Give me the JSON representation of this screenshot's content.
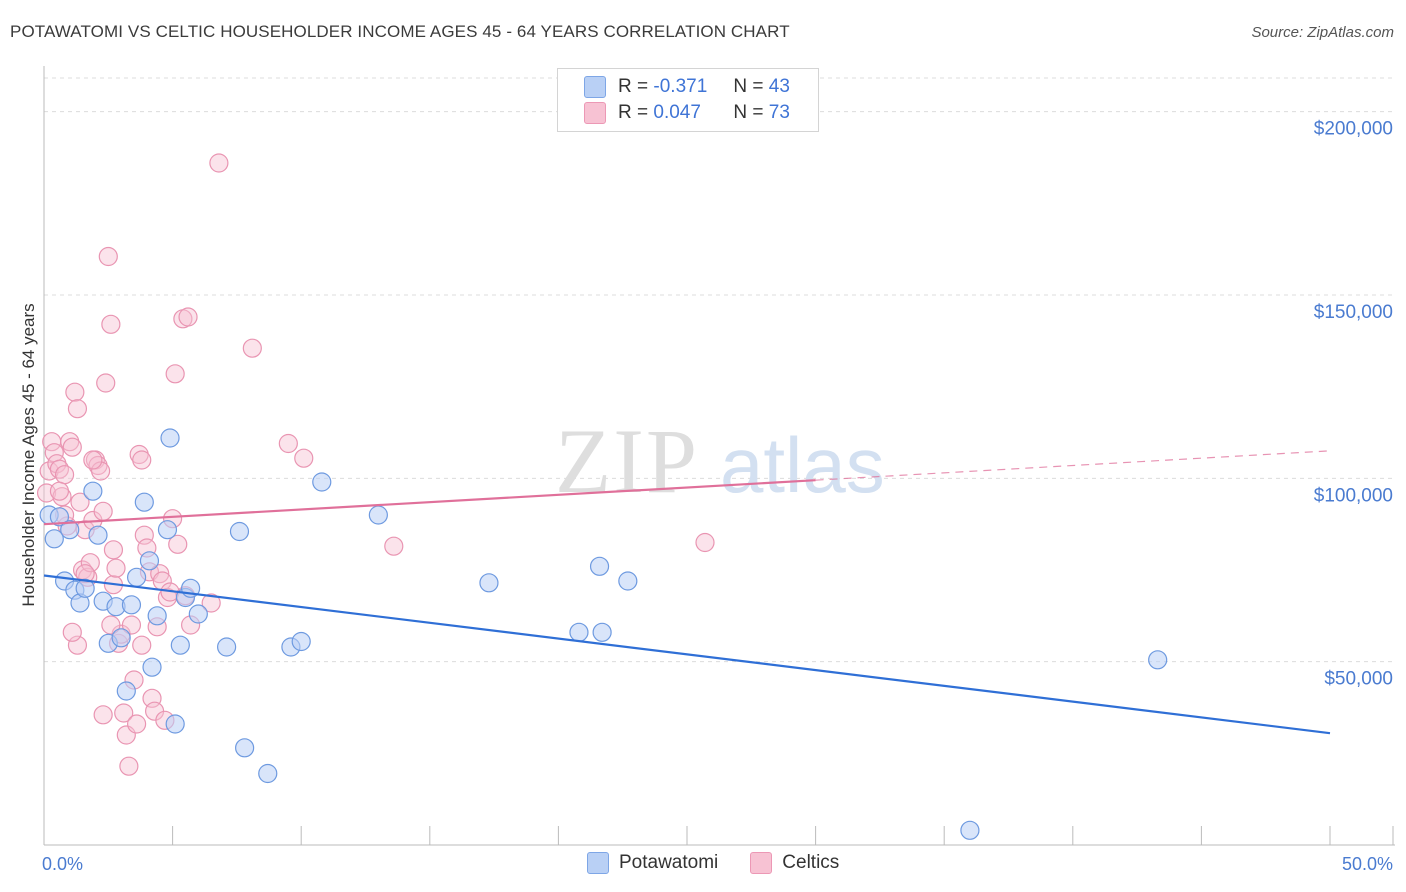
{
  "title": "POTAWATOMI VS CELTIC HOUSEHOLDER INCOME AGES 45 - 64 YEARS CORRELATION CHART",
  "source": "Source: ZipAtlas.com",
  "watermark": {
    "zip": "ZIP",
    "atlas": "atlas"
  },
  "legend_box": [
    {
      "r_label": "R =",
      "r_value": "-0.371",
      "n_label": "N =",
      "n_value": "43"
    },
    {
      "r_label": "R =",
      "r_value": "0.047",
      "n_label": "N =",
      "n_value": "73"
    }
  ],
  "bottom_legend": [
    "Potawatomi",
    "Celtics"
  ],
  "colors": {
    "blue": "#2f6fd6",
    "blue_fill": "#b9d0f5",
    "pink": "#e0709a",
    "pink_fill": "#f7c2d3",
    "axis_label": "#4a7bd0"
  },
  "chart_data": {
    "type": "scatter",
    "title": "POTAWATOMI VS CELTIC HOUSEHOLDER INCOME AGES 45 - 64 YEARS CORRELATION CHART",
    "xlabel": "",
    "ylabel": "Householder Income Ages 45 - 64 years",
    "xlim": [
      0,
      50
    ],
    "ylim": [
      0,
      210000
    ],
    "x_tick_labels": [
      "0.0%",
      "50.0%"
    ],
    "y_ticks": [
      50000,
      100000,
      150000,
      200000
    ],
    "y_tick_labels": [
      "$50,000",
      "$100,000",
      "$150,000",
      "$200,000"
    ],
    "grid": true,
    "series": [
      {
        "name": "Potawatomi",
        "r": -0.371,
        "n": 43,
        "trend": {
          "x": [
            0,
            50
          ],
          "y": [
            73500,
            30500
          ],
          "dashed_from": null
        },
        "points": [
          [
            0.2,
            90000
          ],
          [
            0.4,
            83500
          ],
          [
            0.6,
            89500
          ],
          [
            0.8,
            72000
          ],
          [
            1.0,
            86000
          ],
          [
            1.2,
            69500
          ],
          [
            1.4,
            66000
          ],
          [
            1.6,
            70000
          ],
          [
            1.9,
            96500
          ],
          [
            2.1,
            84500
          ],
          [
            2.3,
            66500
          ],
          [
            2.5,
            55000
          ],
          [
            2.8,
            65000
          ],
          [
            3.0,
            56500
          ],
          [
            3.2,
            42000
          ],
          [
            3.4,
            65500
          ],
          [
            3.6,
            73000
          ],
          [
            3.9,
            93500
          ],
          [
            4.1,
            77500
          ],
          [
            4.2,
            48500
          ],
          [
            4.4,
            62500
          ],
          [
            4.8,
            86000
          ],
          [
            4.9,
            111000
          ],
          [
            5.1,
            33000
          ],
          [
            5.3,
            54500
          ],
          [
            5.5,
            67500
          ],
          [
            5.7,
            70000
          ],
          [
            6.0,
            63000
          ],
          [
            7.1,
            54000
          ],
          [
            7.6,
            85500
          ],
          [
            7.8,
            26500
          ],
          [
            8.7,
            19500
          ],
          [
            9.6,
            54000
          ],
          [
            10.0,
            55500
          ],
          [
            10.8,
            99000
          ],
          [
            13.0,
            90000
          ],
          [
            17.3,
            71500
          ],
          [
            20.8,
            58000
          ],
          [
            21.6,
            76000
          ],
          [
            21.7,
            58000
          ],
          [
            22.7,
            72000
          ],
          [
            36.0,
            4000
          ],
          [
            43.3,
            50500
          ]
        ]
      },
      {
        "name": "Celtics",
        "r": 0.047,
        "n": 73,
        "trend": {
          "x": [
            0,
            50
          ],
          "y": [
            87500,
            107500
          ],
          "dashed_from": 30
        },
        "points": [
          [
            0.1,
            96000
          ],
          [
            0.2,
            102000
          ],
          [
            0.3,
            110000
          ],
          [
            0.4,
            107000
          ],
          [
            0.5,
            104000
          ],
          [
            0.6,
            102500
          ],
          [
            0.7,
            95000
          ],
          [
            0.8,
            101000
          ],
          [
            0.9,
            87000
          ],
          [
            1.0,
            110000
          ],
          [
            1.1,
            108500
          ],
          [
            1.2,
            123500
          ],
          [
            1.3,
            119000
          ],
          [
            1.4,
            93500
          ],
          [
            1.5,
            75000
          ],
          [
            1.6,
            86000
          ],
          [
            1.7,
            73000
          ],
          [
            1.8,
            77000
          ],
          [
            1.9,
            88500
          ],
          [
            2.0,
            105000
          ],
          [
            2.1,
            103500
          ],
          [
            2.2,
            102000
          ],
          [
            2.3,
            91000
          ],
          [
            2.4,
            126000
          ],
          [
            2.5,
            160500
          ],
          [
            2.6,
            142000
          ],
          [
            2.7,
            71000
          ],
          [
            2.8,
            75500
          ],
          [
            2.9,
            55000
          ],
          [
            3.0,
            57500
          ],
          [
            3.1,
            36000
          ],
          [
            3.2,
            30000
          ],
          [
            3.3,
            21500
          ],
          [
            3.4,
            60000
          ],
          [
            3.5,
            45000
          ],
          [
            3.6,
            33000
          ],
          [
            3.7,
            106500
          ],
          [
            3.8,
            105000
          ],
          [
            3.9,
            84500
          ],
          [
            4.0,
            81000
          ],
          [
            4.1,
            74500
          ],
          [
            4.2,
            40000
          ],
          [
            4.3,
            36500
          ],
          [
            4.4,
            59500
          ],
          [
            4.5,
            74000
          ],
          [
            4.6,
            72000
          ],
          [
            4.7,
            34000
          ],
          [
            4.8,
            67500
          ],
          [
            4.9,
            69000
          ],
          [
            5.0,
            89000
          ],
          [
            5.1,
            128500
          ],
          [
            5.2,
            82000
          ],
          [
            5.4,
            143500
          ],
          [
            5.5,
            68000
          ],
          [
            5.6,
            144000
          ],
          [
            5.7,
            60000
          ],
          [
            6.5,
            66000
          ],
          [
            6.8,
            186000
          ],
          [
            8.1,
            135500
          ],
          [
            9.5,
            109500
          ],
          [
            10.1,
            105500
          ],
          [
            13.6,
            81500
          ],
          [
            25.7,
            82500
          ],
          [
            1.3,
            54500
          ],
          [
            1.1,
            58000
          ],
          [
            2.7,
            80500
          ],
          [
            3.8,
            54500
          ],
          [
            0.8,
            90000
          ],
          [
            1.6,
            74000
          ],
          [
            2.3,
            35500
          ],
          [
            0.6,
            96500
          ],
          [
            1.9,
            105000
          ],
          [
            2.6,
            60000
          ]
        ]
      }
    ]
  }
}
